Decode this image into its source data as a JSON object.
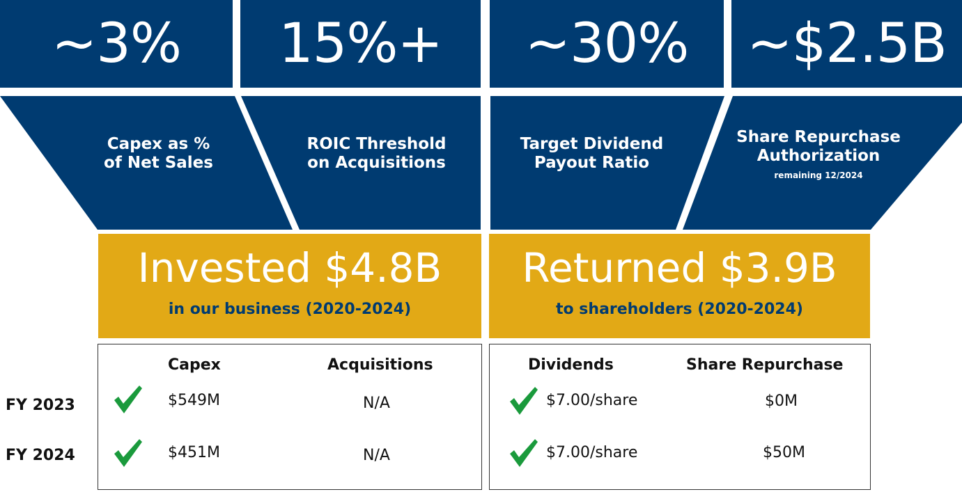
{
  "stats": [
    {
      "value": "~3%",
      "label_lines": [
        "Capex as %",
        "of Net Sales"
      ]
    },
    {
      "value": "15%+",
      "label_lines": [
        "ROIC Threshold",
        "on Acquisitions"
      ]
    },
    {
      "value": "~30%",
      "label_lines": [
        "Target Dividend",
        "Payout Ratio"
      ]
    },
    {
      "value": "~$2.5B",
      "label_lines": [
        "Share Repurchase",
        "Authorization"
      ],
      "sublabel": "remaining 12/2024"
    }
  ],
  "invested": {
    "headline": "Invested $4.8B",
    "subline": "in our business (2020-2024)"
  },
  "returned": {
    "headline": "Returned $3.9B",
    "subline": "to shareholders (2020-2024)"
  },
  "table": {
    "headers": [
      "Capex",
      "Acquisitions",
      "Dividends",
      "Share Repurchase"
    ],
    "rows": [
      {
        "year": "FY 2023",
        "capex": "$549M",
        "acquisitions": "N/A",
        "dividends": "$7.00/share",
        "repurchase": "$0M"
      },
      {
        "year": "FY 2024",
        "capex": "$451M",
        "acquisitions": "N/A",
        "dividends": "$7.00/share",
        "repurchase": "$50M"
      }
    ]
  },
  "colors": {
    "navy": "#003B71",
    "gold": "#E2A916",
    "check_green": "#1A9A3C"
  },
  "icons": [
    "checkmark-icon"
  ]
}
